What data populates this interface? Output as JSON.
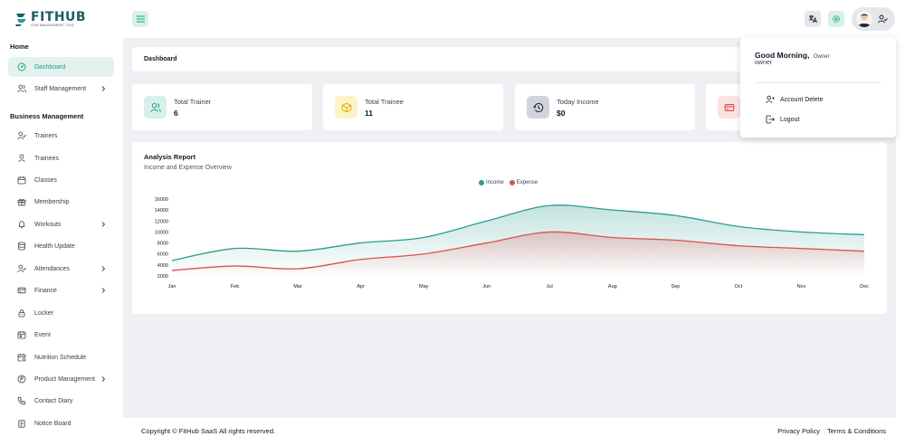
{
  "brand": {
    "logo_text": "FITHUB",
    "tagline": "GYM MANAGEMENT TOOL"
  },
  "topbar": {
    "menu_icon": "hamburger-icon",
    "language_icon": "translate-icon",
    "settings_icon": "gear-icon",
    "user_icon": "user-check-icon"
  },
  "sidebar": {
    "sections": [
      {
        "title": "Home",
        "items": [
          {
            "label": "Dashboard",
            "icon": "dashboard-icon",
            "active": true,
            "has_submenu": false
          },
          {
            "label": "Staff Management",
            "icon": "users-icon",
            "active": false,
            "has_submenu": true
          }
        ]
      },
      {
        "title": "Business Management",
        "items": [
          {
            "label": "Trainers",
            "icon": "user-check-icon",
            "has_submenu": false
          },
          {
            "label": "Trainees",
            "icon": "user-icon",
            "has_submenu": false
          },
          {
            "label": "Classes",
            "icon": "calendar-icon",
            "has_submenu": false
          },
          {
            "label": "Membership",
            "icon": "gift-icon",
            "has_submenu": false
          },
          {
            "label": "Workouts",
            "icon": "bell-icon",
            "has_submenu": true
          },
          {
            "label": "Health Update",
            "icon": "database-icon",
            "has_submenu": false
          },
          {
            "label": "Attendances",
            "icon": "user-check-icon",
            "has_submenu": true
          },
          {
            "label": "Finance",
            "icon": "credit-card-icon",
            "has_submenu": true
          },
          {
            "label": "Locker",
            "icon": "lock-icon",
            "has_submenu": false
          },
          {
            "label": "Event",
            "icon": "calendar-event-icon",
            "has_submenu": false
          },
          {
            "label": "Nutrition Schedule",
            "icon": "calendar-stats-icon",
            "has_submenu": false
          },
          {
            "label": "Product Management",
            "icon": "brand-product-icon",
            "has_submenu": true
          },
          {
            "label": "Contact Diary",
            "icon": "phone-icon",
            "has_submenu": false
          },
          {
            "label": "Notice Board",
            "icon": "clipboard-icon",
            "has_submenu": false
          }
        ]
      }
    ]
  },
  "main": {
    "breadcrumb": "Dashboard",
    "stats": [
      {
        "label": "Total Trainer",
        "value": "6",
        "icon": "users-icon",
        "bg": "#d9efe9",
        "fg": "#16a085"
      },
      {
        "label": "Total Trainee",
        "value": "11",
        "icon": "box-icon",
        "bg": "#fdf3c7",
        "fg": "#e0a800"
      },
      {
        "label": "Today Income",
        "value": "$0",
        "icon": "history-icon",
        "bg": "#d1d5db",
        "fg": "#1f2937"
      },
      {
        "label": "",
        "value": "",
        "icon": "credit-card-icon",
        "bg": "#fde2e2",
        "fg": "#dc3545"
      }
    ]
  },
  "chart_data": {
    "type": "area",
    "title": "Analysis Report",
    "subtitle": "Income and Expense Overview",
    "categories": [
      "Jan",
      "Feb",
      "Mar",
      "Apr",
      "May",
      "Jun",
      "Jul",
      "Aug",
      "Sep",
      "Oct",
      "Nov",
      "Dec"
    ],
    "series": [
      {
        "name": "Income",
        "color": "#2a9d8f",
        "values": [
          4800,
          7000,
          6500,
          8000,
          9000,
          12000,
          14800,
          14000,
          13000,
          11000,
          10000,
          9500
        ]
      },
      {
        "name": "Expense",
        "color": "#d9534f",
        "values": [
          3000,
          3800,
          3300,
          5000,
          6000,
          8000,
          10000,
          9000,
          8500,
          7500,
          7000,
          6500
        ]
      }
    ],
    "yticks": [
      2000,
      4000,
      6000,
      8000,
      10000,
      12000,
      14000,
      16000
    ],
    "ylim": [
      2000,
      16000
    ],
    "legend_position": "top-center",
    "grid": false
  },
  "footer": {
    "copyright": "Copyright © FitHub SaaS All rights reserved.",
    "links": [
      "Privacy Policy",
      "Terms & Conditions"
    ]
  },
  "profile_menu": {
    "greeting": "Good Morning,",
    "role_inline": "Owner",
    "username": "owner",
    "items": [
      {
        "label": "Account Delete",
        "icon": "user-delete-icon"
      },
      {
        "label": "Logout",
        "icon": "logout-icon"
      }
    ]
  }
}
